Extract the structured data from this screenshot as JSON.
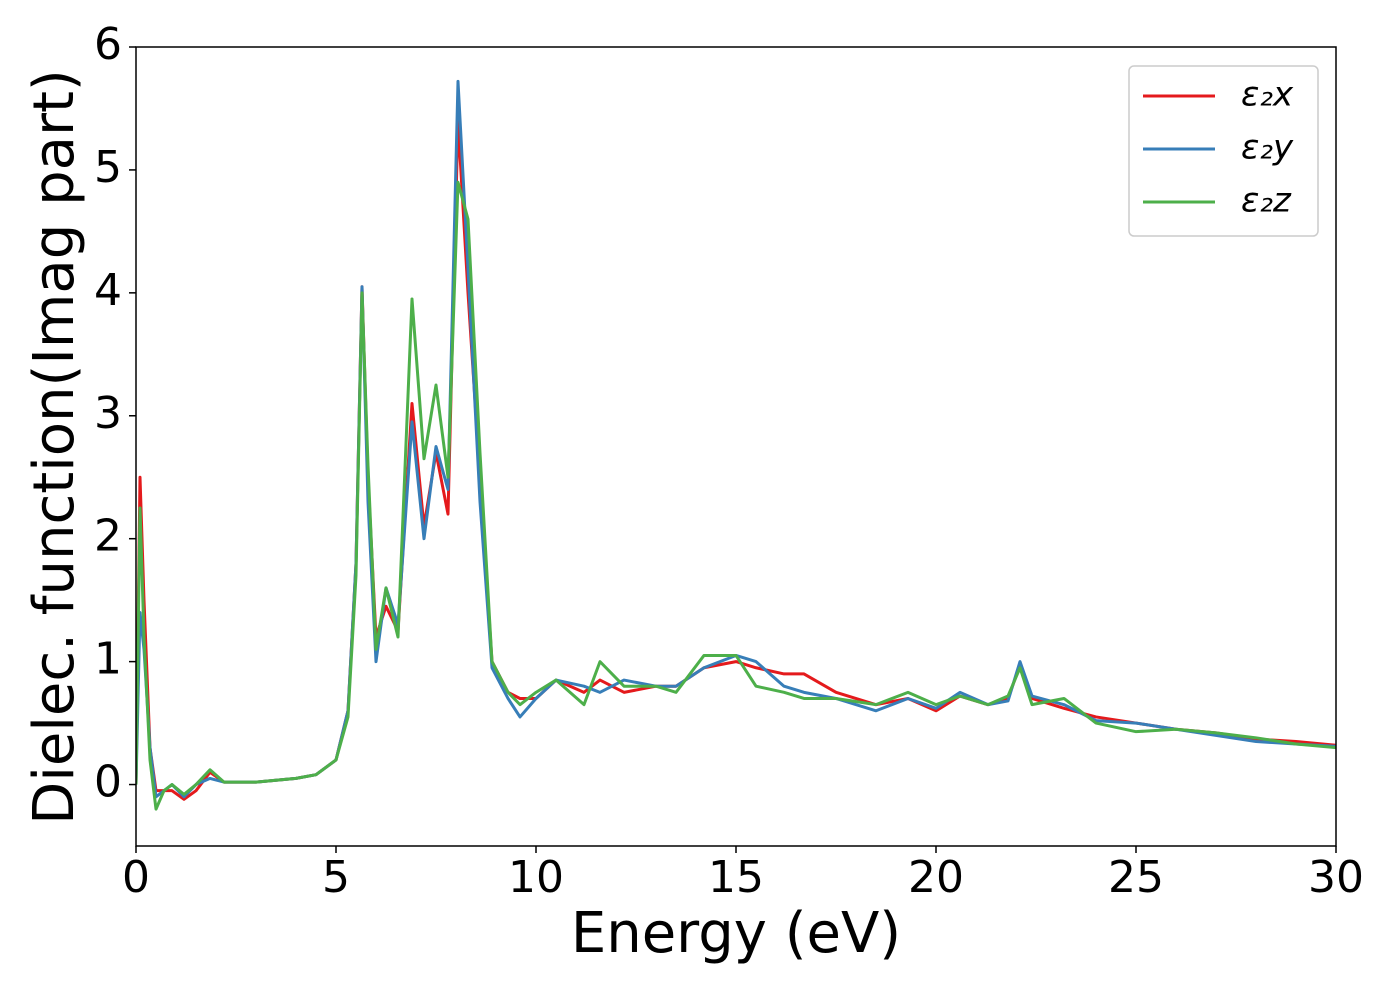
{
  "chart_data": {
    "type": "line",
    "xlabel": "Energy (eV)",
    "ylabel": "Dielec. function(Imag part)",
    "x": [
      0,
      0.1,
      0.2,
      0.35,
      0.5,
      0.7,
      0.9,
      1.2,
      1.5,
      1.85,
      2.2,
      3,
      4,
      4.5,
      5,
      5.3,
      5.5,
      5.65,
      5.8,
      6.0,
      6.25,
      6.55,
      6.9,
      7.2,
      7.5,
      7.8,
      8.05,
      8.3,
      8.6,
      8.9,
      9.3,
      9.6,
      10.0,
      10.5,
      11.2,
      11.6,
      12.2,
      13.0,
      13.5,
      14.2,
      15.0,
      15.5,
      16.2,
      16.7,
      17.5,
      18.5,
      19.3,
      20.0,
      20.6,
      21.3,
      21.8,
      22.1,
      22.4,
      23.2,
      24.0,
      25.0,
      26.0,
      27.0,
      28.0,
      29.0,
      30.0
    ],
    "series": [
      {
        "name": "ε₂x",
        "color": "#e41a1c",
        "values": [
          0,
          2.5,
          1.5,
          0.3,
          -0.05,
          -0.05,
          -0.05,
          -0.12,
          -0.05,
          0.1,
          0.02,
          0.02,
          0.05,
          0.08,
          0.2,
          0.6,
          1.8,
          4.05,
          2.5,
          1.2,
          1.45,
          1.25,
          3.1,
          2.1,
          2.7,
          2.2,
          5.4,
          4.0,
          2.5,
          1.0,
          0.75,
          0.7,
          0.7,
          0.85,
          0.75,
          0.85,
          0.75,
          0.8,
          0.8,
          0.95,
          1.0,
          0.95,
          0.9,
          0.9,
          0.75,
          0.65,
          0.7,
          0.6,
          0.72,
          0.65,
          0.7,
          0.97,
          0.7,
          0.62,
          0.55,
          0.5,
          0.45,
          0.42,
          0.37,
          0.35,
          0.32
        ]
      },
      {
        "name": "ε₂y",
        "color": "#377eb8",
        "values": [
          0,
          1.4,
          1.1,
          0.3,
          -0.1,
          -0.05,
          0,
          -0.1,
          0,
          0.05,
          0.02,
          0.02,
          0.05,
          0.08,
          0.2,
          0.6,
          1.8,
          4.05,
          2.3,
          1.0,
          1.6,
          1.3,
          2.95,
          2.0,
          2.75,
          2.4,
          5.72,
          4.2,
          2.3,
          0.95,
          0.7,
          0.55,
          0.7,
          0.85,
          0.8,
          0.75,
          0.85,
          0.8,
          0.8,
          0.95,
          1.05,
          1.0,
          0.8,
          0.75,
          0.7,
          0.6,
          0.7,
          0.62,
          0.75,
          0.65,
          0.68,
          1.0,
          0.72,
          0.65,
          0.52,
          0.5,
          0.45,
          0.4,
          0.35,
          0.33,
          0.31
        ]
      },
      {
        "name": "ε₂z",
        "color": "#4daf4a",
        "values": [
          0,
          2.25,
          1.2,
          0.2,
          -0.2,
          -0.05,
          0,
          -0.08,
          0,
          0.12,
          0.02,
          0.02,
          0.05,
          0.08,
          0.2,
          0.55,
          1.7,
          4.0,
          2.6,
          1.1,
          1.6,
          1.2,
          3.95,
          2.65,
          3.25,
          2.5,
          4.9,
          4.6,
          2.7,
          1.0,
          0.75,
          0.65,
          0.75,
          0.85,
          0.65,
          1.0,
          0.8,
          0.8,
          0.75,
          1.05,
          1.05,
          0.8,
          0.75,
          0.7,
          0.7,
          0.65,
          0.75,
          0.65,
          0.72,
          0.65,
          0.72,
          0.95,
          0.65,
          0.7,
          0.5,
          0.43,
          0.45,
          0.42,
          0.38,
          0.33,
          0.3
        ]
      }
    ],
    "xlim": [
      0,
      30
    ],
    "xticks": [
      0,
      5,
      10,
      15,
      20,
      25,
      30
    ],
    "ylim": [
      -0.5,
      6
    ],
    "yticks": [
      0,
      1,
      2,
      3,
      4,
      5,
      6
    ],
    "grid": false,
    "legend": "upper right"
  }
}
